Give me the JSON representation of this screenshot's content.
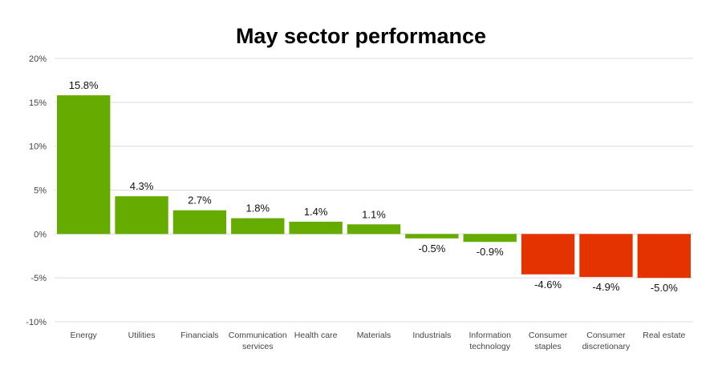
{
  "chart_data": {
    "type": "bar",
    "title": "May sector performance",
    "categories": [
      "Energy",
      "Utilities",
      "Financials",
      "Communication services",
      "Health care",
      "Materials",
      "Industrials",
      "Information technology",
      "Consumer staples",
      "Consumer discretionary",
      "Real estate"
    ],
    "values": [
      15.8,
      4.3,
      2.7,
      1.8,
      1.4,
      1.1,
      -0.5,
      -0.9,
      -4.6,
      -4.9,
      -5.0
    ],
    "data_labels": [
      "15.8%",
      "4.3%",
      "2.7%",
      "1.8%",
      "1.4%",
      "1.1%",
      "-0.5%",
      "-0.9%",
      "-4.6%",
      "-4.9%",
      "-5.0%"
    ],
    "bar_colors": [
      "#66ac00",
      "#66ac00",
      "#66ac00",
      "#66ac00",
      "#66ac00",
      "#66ac00",
      "#66ac00",
      "#66ac00",
      "#e53300",
      "#e53300",
      "#e53300"
    ],
    "y_ticks": [
      20,
      15,
      10,
      5,
      0,
      -5,
      -10
    ],
    "y_tick_labels": [
      "20%",
      "15%",
      "10%",
      "5%",
      "0%",
      "-5%",
      "-10%"
    ],
    "ylim": [
      -10,
      20
    ],
    "xlabel": "",
    "ylabel": "",
    "grid": true,
    "legend": "none"
  }
}
